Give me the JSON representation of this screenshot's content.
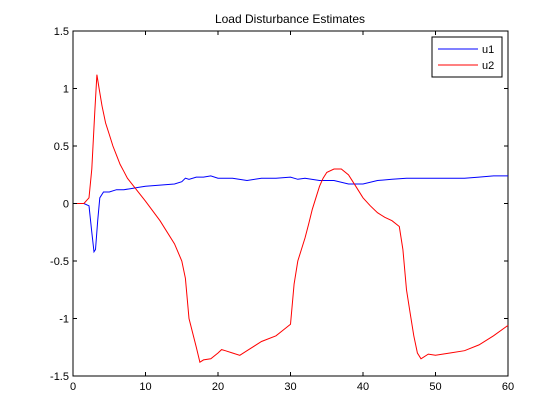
{
  "chart_data": {
    "type": "line",
    "title": "Load Disturbance Estimates",
    "xlabel": "",
    "ylabel": "",
    "xlim": [
      0,
      60
    ],
    "ylim": [
      -1.5,
      1.5
    ],
    "xticks": [
      0,
      10,
      20,
      30,
      40,
      50,
      60
    ],
    "xtick_labels": [
      "0",
      "10",
      "20",
      "30",
      "40",
      "50",
      "60"
    ],
    "yticks": [
      -1.5,
      -1,
      -0.5,
      0,
      0.5,
      1,
      1.5
    ],
    "ytick_labels": [
      "-1.5",
      "-1",
      "-0.5",
      "0",
      "0.5",
      "1",
      "1.5"
    ],
    "grid": false,
    "legend_position": "top-right",
    "series": [
      {
        "name": "u1",
        "color": "#0000ff",
        "x": [
          0,
          1.5,
          2.2,
          2.6,
          2.9,
          3.1,
          3.4,
          3.7,
          4.2,
          5,
          6,
          7,
          8,
          9,
          10,
          12,
          14,
          15,
          15.5,
          16,
          17,
          18,
          19,
          20,
          22,
          24,
          26,
          28,
          30,
          31,
          32,
          34,
          36,
          38,
          39,
          40,
          42,
          44,
          46,
          48,
          50,
          52,
          54,
          56,
          58,
          60
        ],
        "y": [
          0,
          0,
          -0.02,
          -0.25,
          -0.42,
          -0.4,
          -0.15,
          0.05,
          0.1,
          0.1,
          0.12,
          0.12,
          0.13,
          0.14,
          0.15,
          0.16,
          0.17,
          0.19,
          0.22,
          0.21,
          0.23,
          0.23,
          0.24,
          0.22,
          0.22,
          0.2,
          0.22,
          0.22,
          0.23,
          0.21,
          0.22,
          0.2,
          0.2,
          0.17,
          0.17,
          0.17,
          0.2,
          0.21,
          0.22,
          0.22,
          0.22,
          0.22,
          0.22,
          0.23,
          0.24,
          0.24
        ]
      },
      {
        "name": "u2",
        "color": "#ff0000",
        "x": [
          0,
          1.5,
          2.2,
          2.6,
          3,
          3.3,
          3.6,
          4,
          4.5,
          5,
          5.5,
          6,
          6.5,
          7,
          7.5,
          8,
          10,
          12,
          14,
          15,
          15.5,
          16,
          17,
          17.5,
          18,
          19,
          20,
          20.5,
          21,
          22,
          23,
          24,
          26,
          28,
          29,
          30,
          30.5,
          31,
          31.5,
          32,
          32.5,
          33,
          33.5,
          34,
          34.5,
          35,
          36,
          37,
          38,
          39,
          40,
          41,
          42,
          43,
          44,
          45,
          45.5,
          46,
          46.5,
          47,
          47.5,
          48,
          49,
          50,
          52,
          54,
          56,
          58,
          60
        ],
        "y": [
          0,
          0,
          0.05,
          0.3,
          0.8,
          1.12,
          1.0,
          0.85,
          0.7,
          0.6,
          0.5,
          0.42,
          0.34,
          0.28,
          0.22,
          0.18,
          0.02,
          -0.15,
          -0.35,
          -0.5,
          -0.65,
          -1.0,
          -1.25,
          -1.38,
          -1.36,
          -1.35,
          -1.3,
          -1.27,
          -1.28,
          -1.3,
          -1.32,
          -1.28,
          -1.2,
          -1.15,
          -1.1,
          -1.05,
          -0.7,
          -0.5,
          -0.4,
          -0.3,
          -0.18,
          -0.05,
          0.05,
          0.15,
          0.22,
          0.27,
          0.3,
          0.3,
          0.25,
          0.15,
          0.05,
          -0.02,
          -0.08,
          -0.12,
          -0.15,
          -0.2,
          -0.4,
          -0.75,
          -0.95,
          -1.15,
          -1.3,
          -1.35,
          -1.31,
          -1.32,
          -1.3,
          -1.28,
          -1.23,
          -1.15,
          -1.06
        ]
      }
    ]
  }
}
